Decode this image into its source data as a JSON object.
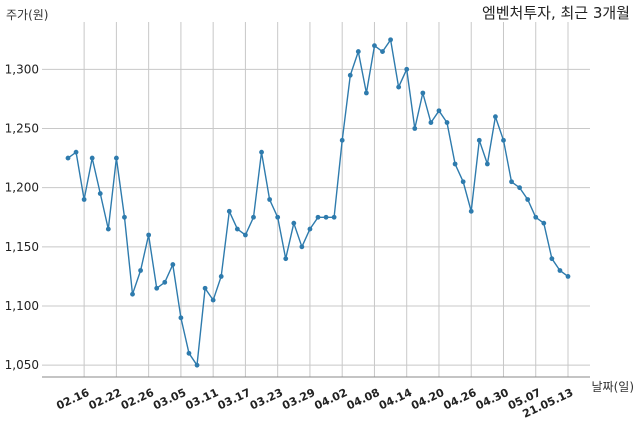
{
  "chart_data": {
    "type": "line",
    "title": "엠벤처투자, 최근 3개월",
    "ylabel": "주가(원)",
    "xlabel": "날짜(일)",
    "ylim": [
      1040,
      1340
    ],
    "y_ticks": [
      1050,
      1100,
      1150,
      1200,
      1250,
      1300
    ],
    "y_tick_labels": [
      "1,050",
      "1,100",
      "1,150",
      "1,200",
      "1,250",
      "1,300"
    ],
    "x_tick_labels": [
      "02.16",
      "02.22",
      "02.26",
      "03.05",
      "03.11",
      "03.17",
      "03.23",
      "03.29",
      "04.02",
      "04.08",
      "04.14",
      "04.20",
      "04.26",
      "04.30",
      "05.07",
      "21.05.13"
    ],
    "x_tick_indices": [
      2,
      6,
      10,
      14,
      18,
      22,
      26,
      30,
      34,
      38,
      42,
      46,
      50,
      54,
      58,
      62
    ],
    "grid": true,
    "series": [
      {
        "color": "#2e7bad",
        "values": [
          1225,
          1230,
          1190,
          1225,
          1195,
          1165,
          1225,
          1175,
          1110,
          1130,
          1160,
          1115,
          1120,
          1135,
          1090,
          1060,
          1050,
          1115,
          1105,
          1125,
          1180,
          1165,
          1160,
          1175,
          1230,
          1190,
          1175,
          1140,
          1170,
          1150,
          1165,
          1175,
          1175,
          1175,
          1240,
          1295,
          1315,
          1280,
          1320,
          1315,
          1325,
          1285,
          1300,
          1250,
          1280,
          1255,
          1265,
          1255,
          1220,
          1205,
          1180,
          1240,
          1220,
          1260,
          1240,
          1205,
          1200,
          1190,
          1175,
          1170,
          1140,
          1130,
          1125
        ]
      }
    ]
  }
}
